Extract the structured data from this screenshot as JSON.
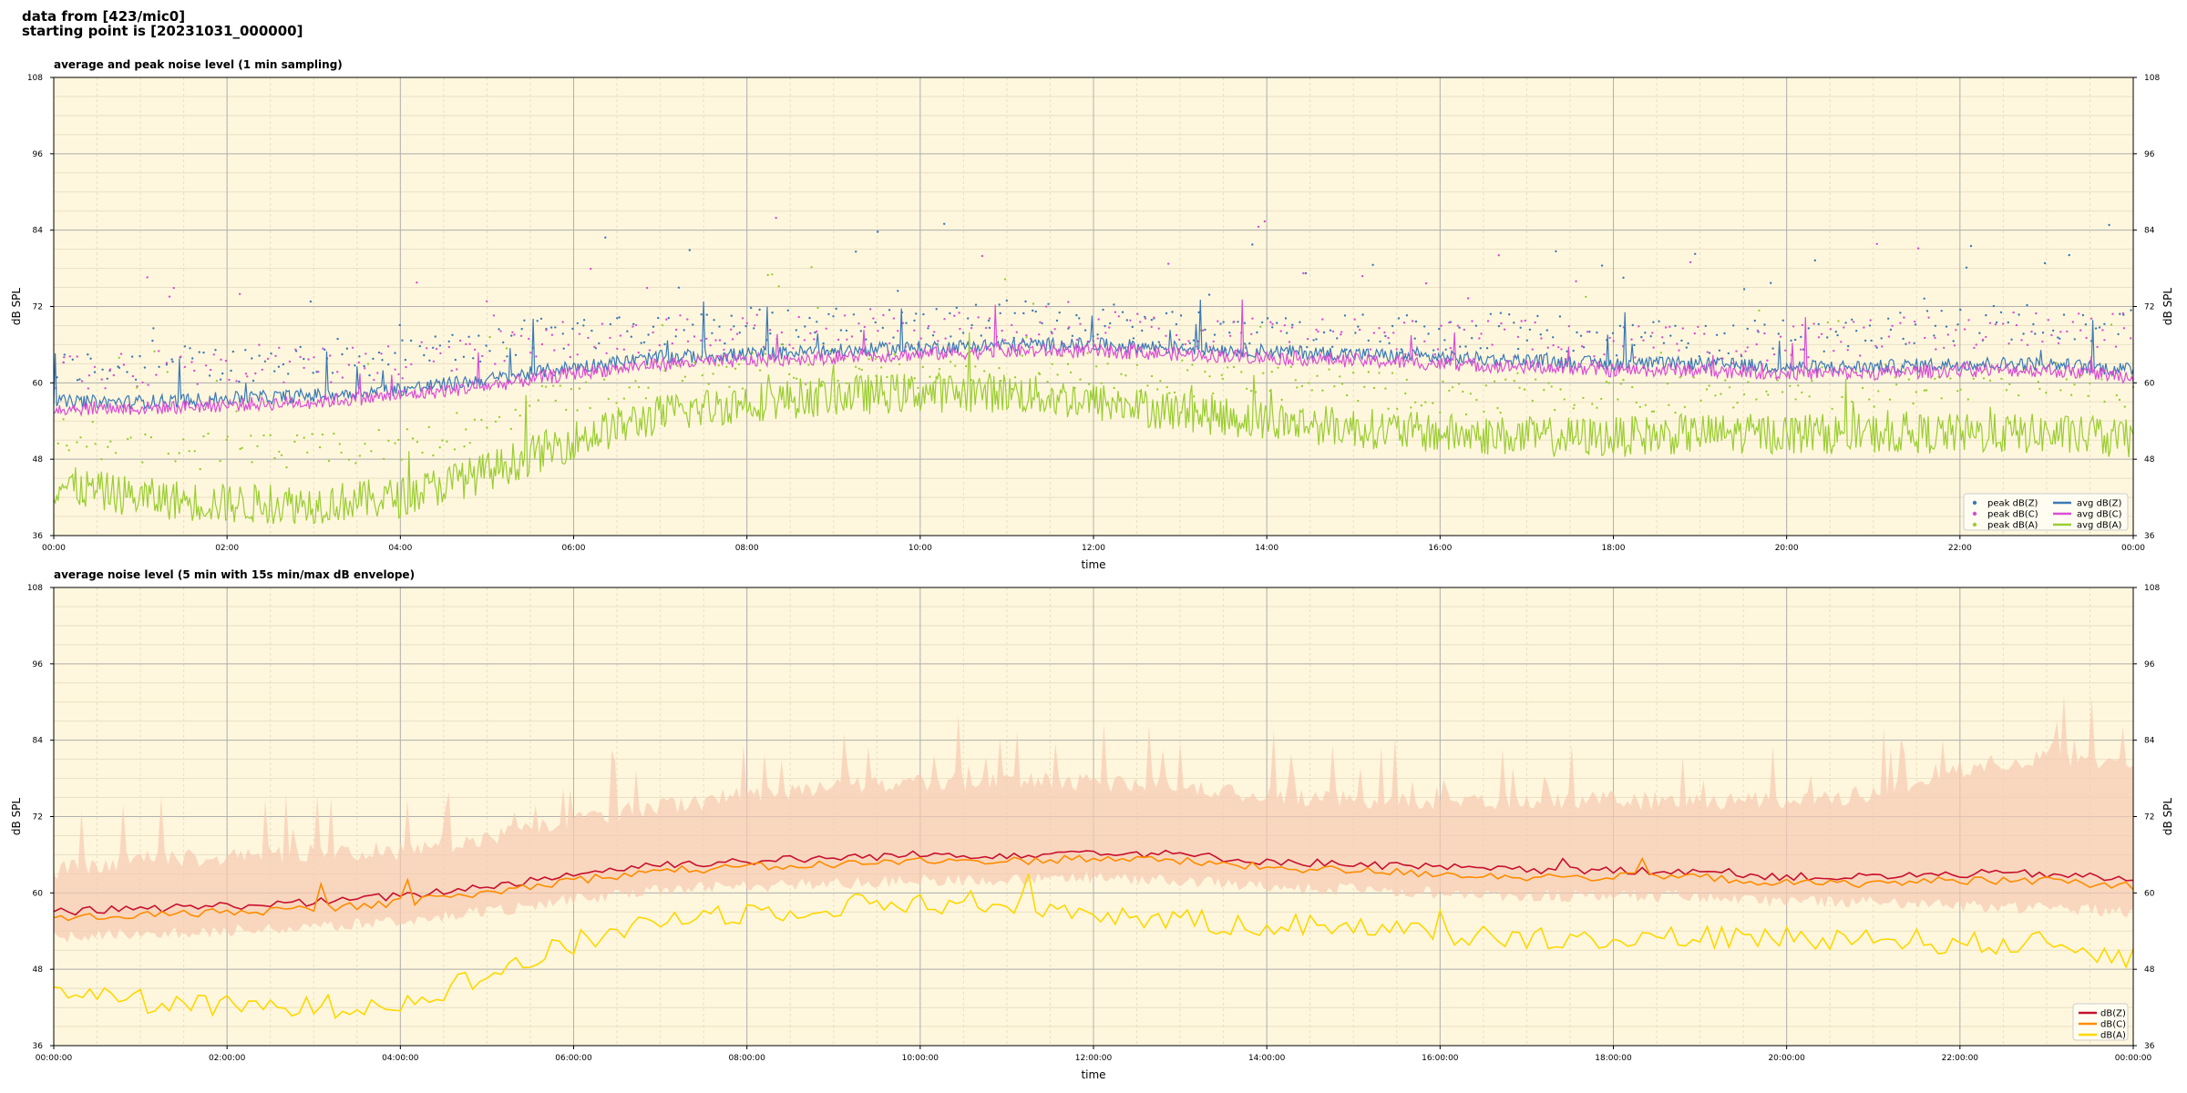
{
  "header": {
    "line1": "data from [423/mic0]",
    "line2": "starting point is [20231031_000000]"
  },
  "colors": {
    "plot_bg": "#fff7dd",
    "grid_major": "#b0b0b0",
    "grid_minor": "#e8dfc4",
    "z": "#3a79b6",
    "c": "#d94fd4",
    "a": "#9acd32",
    "z2": "#c8102e",
    "c2": "#ff8c00",
    "a2": "#ffd700",
    "envelope": "#f6c9b0"
  },
  "chart_data": [
    {
      "type": "line",
      "title": "average and peak noise level (1 min sampling)",
      "xlabel": "time",
      "ylabel": "dB SPL",
      "ylim": [
        36,
        108
      ],
      "yticks": [
        "36",
        "48",
        "60",
        "72",
        "84",
        "96",
        "108"
      ],
      "xticks": [
        "00:00",
        "02:00",
        "04:00",
        "06:00",
        "08:00",
        "10:00",
        "12:00",
        "14:00",
        "16:00",
        "18:00",
        "20:00",
        "22:00",
        "00:00"
      ],
      "xrange_hours": [
        0,
        24
      ],
      "grid": true,
      "legend_position": "bottom-right",
      "series": [
        {
          "name": "peak dB(Z)",
          "kind": "scatter",
          "color_key": "z",
          "x": [
            0,
            1,
            2,
            3,
            4,
            5,
            6,
            7,
            8,
            9,
            10,
            11,
            12,
            13,
            14,
            15,
            16,
            17,
            18,
            19,
            20,
            21,
            22,
            23,
            24
          ],
          "values": [
            62,
            63,
            63,
            64,
            64,
            66,
            68,
            69,
            69,
            69,
            69,
            70,
            70,
            69,
            69,
            68,
            68,
            68,
            67,
            67,
            67,
            68,
            69,
            70,
            69
          ]
        },
        {
          "name": "peak dB(C)",
          "kind": "scatter",
          "color_key": "c",
          "x": [
            0,
            1,
            2,
            3,
            4,
            5,
            6,
            7,
            8,
            9,
            10,
            11,
            12,
            13,
            14,
            15,
            16,
            17,
            18,
            19,
            20,
            21,
            22,
            23,
            24
          ],
          "values": [
            61,
            62,
            62,
            63,
            63,
            65,
            67,
            68,
            68,
            68,
            68,
            69,
            69,
            68,
            68,
            67,
            67,
            67,
            66,
            66,
            66,
            67,
            68,
            69,
            68
          ]
        },
        {
          "name": "peak dB(A)",
          "kind": "scatter",
          "color_key": "a",
          "x": [
            0,
            1,
            2,
            3,
            4,
            5,
            6,
            7,
            8,
            9,
            10,
            11,
            12,
            13,
            14,
            15,
            16,
            17,
            18,
            19,
            20,
            21,
            22,
            23,
            24
          ],
          "values": [
            52,
            50,
            49,
            49,
            50,
            54,
            58,
            61,
            62,
            62,
            62,
            62,
            62,
            61,
            60,
            59,
            58,
            58,
            58,
            58,
            58,
            59,
            60,
            61,
            59
          ]
        },
        {
          "name": "avg dB(Z)",
          "kind": "line",
          "color_key": "z",
          "x": [
            0,
            1,
            2,
            3,
            4,
            5,
            6,
            7,
            8,
            9,
            10,
            11,
            12,
            13,
            14,
            15,
            16,
            17,
            18,
            19,
            20,
            21,
            22,
            23,
            24
          ],
          "values": [
            57,
            57,
            57.5,
            58,
            59,
            60.5,
            62.5,
            64,
            64.5,
            65,
            65.5,
            66,
            66,
            65.5,
            65,
            64.5,
            64,
            63.5,
            63,
            63,
            62.5,
            62.5,
            63,
            63,
            62
          ]
        },
        {
          "name": "avg dB(C)",
          "kind": "line",
          "color_key": "c",
          "x": [
            0,
            1,
            2,
            3,
            4,
            5,
            6,
            7,
            8,
            9,
            10,
            11,
            12,
            13,
            14,
            15,
            16,
            17,
            18,
            19,
            20,
            21,
            22,
            23,
            24
          ],
          "values": [
            56,
            56,
            56.5,
            57,
            58,
            59.5,
            61.5,
            63,
            63.5,
            64,
            64.5,
            65,
            65,
            64.5,
            64,
            63.5,
            63,
            62.5,
            62,
            62,
            61.5,
            61.5,
            62,
            62,
            61
          ]
        },
        {
          "name": "avg dB(A)",
          "kind": "line",
          "color_key": "a",
          "x": [
            0,
            1,
            2,
            3,
            4,
            5,
            6,
            7,
            8,
            9,
            10,
            11,
            12,
            13,
            14,
            15,
            16,
            17,
            18,
            19,
            20,
            21,
            22,
            23,
            24
          ],
          "values": [
            44,
            42,
            41,
            41,
            42,
            46,
            51,
            55,
            57,
            58,
            58.5,
            58.5,
            57,
            55.5,
            54,
            53,
            52,
            51.5,
            51.5,
            52,
            52,
            52,
            52,
            52,
            51
          ]
        }
      ]
    },
    {
      "type": "line",
      "title": "average noise level (5 min with 15s min/max dB envelope)",
      "xlabel": "time",
      "ylabel": "dB SPL",
      "ylim": [
        36,
        108
      ],
      "yticks": [
        "36",
        "48",
        "60",
        "72",
        "84",
        "96",
        "108"
      ],
      "xticks": [
        "00:00:00",
        "02:00:00",
        "04:00:00",
        "06:00:00",
        "08:00:00",
        "10:00:00",
        "12:00:00",
        "14:00:00",
        "16:00:00",
        "18:00:00",
        "20:00:00",
        "22:00:00",
        "00:00:00"
      ],
      "xrange_hours": [
        0,
        24
      ],
      "grid": true,
      "legend_position": "bottom-right",
      "series": [
        {
          "name": "dB(Z)",
          "kind": "line",
          "color_key": "z2",
          "x": [
            0,
            1,
            2,
            3,
            4,
            5,
            6,
            7,
            8,
            9,
            10,
            11,
            12,
            13,
            14,
            15,
            16,
            17,
            18,
            19,
            20,
            21,
            22,
            23,
            24
          ],
          "values": [
            57,
            57.5,
            58,
            58.5,
            59.5,
            61,
            63,
            64.5,
            65,
            65.5,
            66,
            66,
            66.5,
            66,
            65,
            64.5,
            64,
            63.5,
            63.5,
            63.5,
            62.5,
            62.5,
            63,
            63,
            62
          ]
        },
        {
          "name": "dB(C)",
          "kind": "line",
          "color_key": "c2",
          "x": [
            0,
            1,
            2,
            3,
            4,
            5,
            6,
            7,
            8,
            9,
            10,
            11,
            12,
            13,
            14,
            15,
            16,
            17,
            18,
            19,
            20,
            21,
            22,
            23,
            24
          ],
          "values": [
            56,
            56.5,
            57,
            57.5,
            58.5,
            60,
            62,
            63.5,
            64,
            64.5,
            65,
            65,
            65.5,
            65,
            64,
            63.5,
            63,
            62.5,
            62.5,
            62.5,
            61.5,
            61.5,
            62,
            62,
            61
          ]
        },
        {
          "name": "dB(A)",
          "kind": "line",
          "color_key": "a2",
          "x": [
            0,
            1,
            2,
            3,
            4,
            5,
            6,
            7,
            8,
            9,
            10,
            11,
            12,
            13,
            14,
            15,
            16,
            17,
            18,
            19,
            20,
            21,
            22,
            23,
            24
          ],
          "values": [
            45,
            43,
            42,
            42,
            43,
            47,
            52,
            56,
            57,
            58,
            58.5,
            58.5,
            57,
            55.5,
            55,
            55,
            53.5,
            53,
            53,
            53,
            53,
            53,
            52,
            52,
            50
          ]
        }
      ],
      "envelope": {
        "x": [
          0,
          1,
          2,
          3,
          4,
          5,
          6,
          7,
          8,
          9,
          10,
          11,
          12,
          13,
          14,
          15,
          16,
          17,
          18,
          19,
          20,
          21,
          22,
          23,
          24
        ],
        "min": [
          54,
          54.5,
          55,
          55.5,
          56.5,
          58,
          60,
          61.5,
          62,
          62.5,
          63,
          63,
          63.5,
          63,
          62,
          61.5,
          61,
          60.5,
          60.5,
          60.5,
          59.5,
          59.5,
          59,
          58.5,
          58
        ],
        "max": [
          62,
          64,
          64,
          65,
          65,
          67,
          70,
          72,
          74,
          75,
          76,
          76,
          76,
          75,
          74,
          73,
          73,
          73,
          73,
          73,
          73,
          74,
          78,
          80,
          78
        ]
      }
    }
  ]
}
